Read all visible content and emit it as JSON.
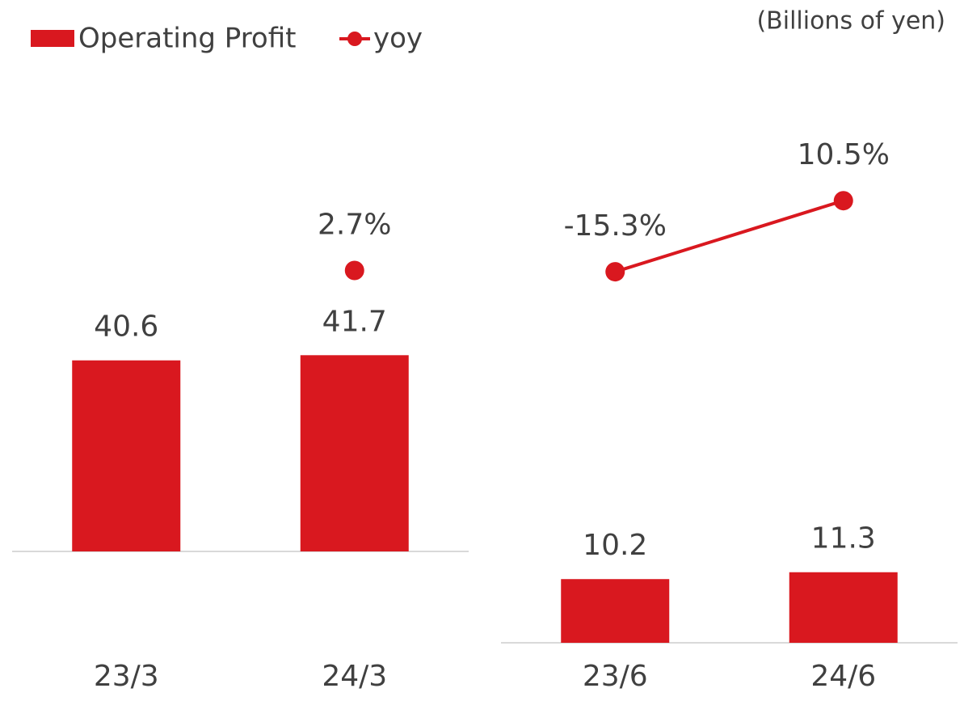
{
  "chart_data": [
    {
      "type": "bar",
      "units": "(Billions of yen)",
      "categories": [
        "23/3",
        "24/3"
      ],
      "series": [
        {
          "name": "Operating Profit",
          "color": "#d9181f",
          "values": [
            40.6,
            41.7
          ]
        },
        {
          "name": "yoy",
          "type": "line",
          "axis": "y2",
          "color": "#d9181f",
          "values": [
            null,
            2.7
          ],
          "value_labels": [
            null,
            "2.7%"
          ]
        }
      ],
      "ylim": [
        0,
        100
      ],
      "y2lim": [
        -100,
        72
      ]
    },
    {
      "type": "bar",
      "categories": [
        "23/6",
        "24/6"
      ],
      "series": [
        {
          "color": "#d9181f",
          "values": [
            10.2,
            11.3
          ]
        },
        {
          "type": "line",
          "axis": "y2",
          "color": "#d9181f",
          "values": [
            -15.3,
            10.5
          ],
          "value_labels": [
            "-15.3%",
            "10.5%"
          ]
        }
      ],
      "ylim": [
        0,
        90
      ],
      "y2lim": [
        -150,
        54
      ]
    }
  ]
}
